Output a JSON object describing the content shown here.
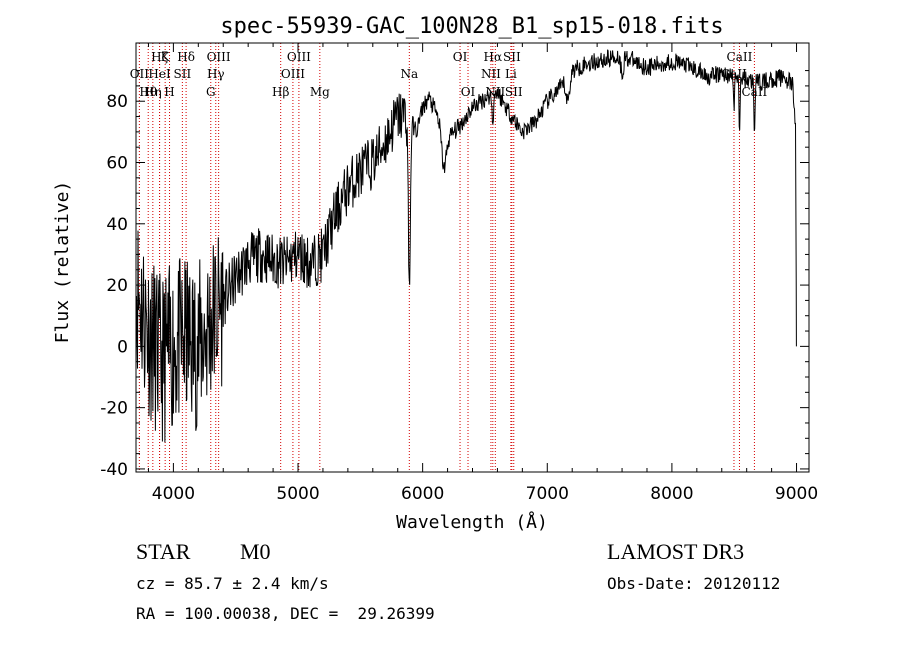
{
  "chart_data": {
    "type": "line",
    "title": "spec-55939-GAC_100N28_B1_sp15-018.fits",
    "xlabel": "Wavelength (Å)",
    "ylabel": "Flux (relative)",
    "xlim": [
      3700,
      9100
    ],
    "ylim": [
      -41,
      99
    ],
    "xticks": [
      4000,
      5000,
      6000,
      7000,
      8000,
      9000
    ],
    "yticks": [
      -40,
      -20,
      0,
      20,
      40,
      60,
      80
    ],
    "grid": false,
    "spectrum_anchors": [
      {
        "x": 3700,
        "y": 20
      },
      {
        "x": 3800,
        "y": 5
      },
      {
        "x": 3900,
        "y": -5
      },
      {
        "x": 4000,
        "y": 0
      },
      {
        "x": 4100,
        "y": 2
      },
      {
        "x": 4200,
        "y": 0
      },
      {
        "x": 4300,
        "y": 8
      },
      {
        "x": 4400,
        "y": 15
      },
      {
        "x": 4500,
        "y": 22
      },
      {
        "x": 4600,
        "y": 28
      },
      {
        "x": 4700,
        "y": 30
      },
      {
        "x": 4800,
        "y": 28
      },
      {
        "x": 4900,
        "y": 27
      },
      {
        "x": 5000,
        "y": 30
      },
      {
        "x": 5100,
        "y": 27
      },
      {
        "x": 5200,
        "y": 30
      },
      {
        "x": 5300,
        "y": 43
      },
      {
        "x": 5400,
        "y": 52
      },
      {
        "x": 5500,
        "y": 57
      },
      {
        "x": 5600,
        "y": 60
      },
      {
        "x": 5700,
        "y": 67
      },
      {
        "x": 5800,
        "y": 75
      },
      {
        "x": 5880,
        "y": 76
      },
      {
        "x": 5950,
        "y": 70
      },
      {
        "x": 6000,
        "y": 78
      },
      {
        "x": 6050,
        "y": 81
      },
      {
        "x": 6100,
        "y": 77
      },
      {
        "x": 6150,
        "y": 72
      },
      {
        "x": 6200,
        "y": 68
      },
      {
        "x": 6300,
        "y": 72
      },
      {
        "x": 6400,
        "y": 78
      },
      {
        "x": 6500,
        "y": 81
      },
      {
        "x": 6600,
        "y": 83
      },
      {
        "x": 6700,
        "y": 76
      },
      {
        "x": 6800,
        "y": 70
      },
      {
        "x": 6900,
        "y": 73
      },
      {
        "x": 7000,
        "y": 80
      },
      {
        "x": 7100,
        "y": 84
      },
      {
        "x": 7200,
        "y": 90
      },
      {
        "x": 7300,
        "y": 92
      },
      {
        "x": 7400,
        "y": 93
      },
      {
        "x": 7500,
        "y": 94
      },
      {
        "x": 7600,
        "y": 95
      },
      {
        "x": 7700,
        "y": 93
      },
      {
        "x": 7800,
        "y": 91
      },
      {
        "x": 7900,
        "y": 92
      },
      {
        "x": 8000,
        "y": 93
      },
      {
        "x": 8100,
        "y": 92
      },
      {
        "x": 8200,
        "y": 90
      },
      {
        "x": 8300,
        "y": 88
      },
      {
        "x": 8400,
        "y": 89
      },
      {
        "x": 8500,
        "y": 88
      },
      {
        "x": 8600,
        "y": 87
      },
      {
        "x": 8700,
        "y": 86
      },
      {
        "x": 8800,
        "y": 87
      },
      {
        "x": 8900,
        "y": 88
      },
      {
        "x": 8970,
        "y": 85
      },
      {
        "x": 8995,
        "y": 70
      }
    ],
    "absorption_features": [
      {
        "x": 5893,
        "depth": 55,
        "width": 12
      },
      {
        "x": 6170,
        "depth": 12,
        "width": 25
      },
      {
        "x": 6563,
        "depth": 8,
        "width": 10
      },
      {
        "x": 7165,
        "depth": 8,
        "width": 20
      },
      {
        "x": 7600,
        "depth": 6,
        "width": 15
      },
      {
        "x": 8498,
        "depth": 10,
        "width": 6
      },
      {
        "x": 8542,
        "depth": 18,
        "width": 6
      },
      {
        "x": 8662,
        "depth": 15,
        "width": 6
      }
    ],
    "noise": [
      {
        "from": 3700,
        "to": 4400,
        "amplitude": 28
      },
      {
        "from": 4400,
        "to": 5300,
        "amplitude": 9
      },
      {
        "from": 5300,
        "to": 5900,
        "amplitude": 9
      },
      {
        "from": 5900,
        "to": 9000,
        "amplitude": 3
      }
    ],
    "line_markers": [
      {
        "x": 3727,
        "label": "OII",
        "row": 2
      },
      {
        "x": 3798,
        "label": "Hθ",
        "row": 3
      },
      {
        "x": 3835,
        "label": "Hη",
        "row": 3
      },
      {
        "x": 3889,
        "label": "Hζ",
        "row": 1
      },
      {
        "x": 3889,
        "label": "HeI",
        "row": 2
      },
      {
        "x": 3934,
        "label": "K",
        "row": 1
      },
      {
        "x": 3969,
        "label": "H",
        "row": 3
      },
      {
        "x": 4072,
        "label": "SII",
        "row": 2
      },
      {
        "x": 4102,
        "label": "Hδ",
        "row": 1
      },
      {
        "x": 4300,
        "label": "G",
        "row": 3
      },
      {
        "x": 4340,
        "label": "Hγ",
        "row": 2
      },
      {
        "x": 4363,
        "label": "OIII",
        "row": 1
      },
      {
        "x": 4861,
        "label": "Hβ",
        "row": 3
      },
      {
        "x": 4959,
        "label": "OIII",
        "row": 2
      },
      {
        "x": 5007,
        "label": "OIII",
        "row": 1
      },
      {
        "x": 5175,
        "label": "Mg",
        "row": 3
      },
      {
        "x": 5893,
        "label": "Na",
        "row": 2
      },
      {
        "x": 6300,
        "label": "OI",
        "row": 1
      },
      {
        "x": 6364,
        "label": "OI",
        "row": 3
      },
      {
        "x": 6548,
        "label": "NII",
        "row": 2
      },
      {
        "x": 6563,
        "label": "Hα",
        "row": 1
      },
      {
        "x": 6583,
        "label": "NII",
        "row": 3
      },
      {
        "x": 6708,
        "label": "Li",
        "row": 2
      },
      {
        "x": 6716,
        "label": "SII",
        "row": 1
      },
      {
        "x": 6731,
        "label": "SII",
        "row": 3
      },
      {
        "x": 8498,
        "label": "CaII",
        "row": 2
      },
      {
        "x": 8542,
        "label": "CaII",
        "row": 1
      },
      {
        "x": 8662,
        "label": "CaII",
        "row": 3
      }
    ]
  },
  "info": {
    "class": "STAR",
    "subclass": "M0",
    "survey": "LAMOST DR3",
    "cz": "cz = 85.7 ± 2.4 km/s",
    "obs_date": "Obs-Date: 20120112",
    "coords": "RA = 100.00038, DEC =  29.26399"
  }
}
